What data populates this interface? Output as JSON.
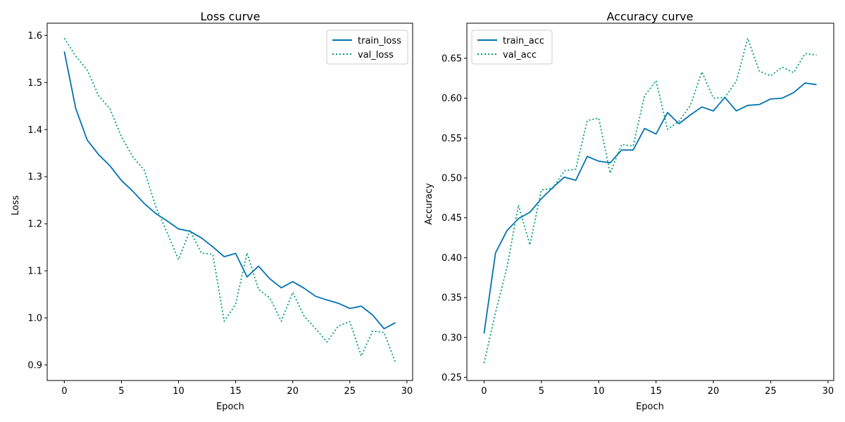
{
  "chart_data": [
    {
      "type": "line",
      "title": "Loss curve",
      "xlabel": "Epoch",
      "ylabel": "Loss",
      "xlim": [
        -1.5,
        30.5
      ],
      "ylim": [
        0.867,
        1.626
      ],
      "xticks": [
        0,
        5,
        10,
        15,
        20,
        25,
        30
      ],
      "yticks": [
        0.9,
        1.0,
        1.1,
        1.2,
        1.3,
        1.4,
        1.5,
        1.6
      ],
      "ytick_labels": [
        "0.9",
        "1.0",
        "1.1",
        "1.2",
        "1.3",
        "1.4",
        "1.5",
        "1.6"
      ],
      "grid": false,
      "legend": "top-right",
      "x": [
        0,
        1,
        2,
        3,
        4,
        5,
        6,
        7,
        8,
        9,
        10,
        11,
        12,
        13,
        14,
        15,
        16,
        17,
        18,
        19,
        20,
        21,
        22,
        23,
        24,
        25,
        26,
        27,
        28,
        29
      ],
      "series": [
        {
          "name": "train_loss",
          "color": "#0072b2",
          "style": "solid",
          "values": [
            1.566,
            1.445,
            1.378,
            1.347,
            1.323,
            1.292,
            1.269,
            1.243,
            1.222,
            1.206,
            1.189,
            1.184,
            1.17,
            1.151,
            1.13,
            1.137,
            1.087,
            1.11,
            1.083,
            1.064,
            1.077,
            1.063,
            1.046,
            1.038,
            1.031,
            1.02,
            1.025,
            1.006,
            0.977,
            0.99
          ]
        },
        {
          "name": "val_loss",
          "color": "#009e73",
          "style": "dotted",
          "values": [
            1.594,
            1.556,
            1.527,
            1.472,
            1.444,
            1.385,
            1.342,
            1.314,
            1.237,
            1.181,
            1.124,
            1.186,
            1.138,
            1.135,
            0.993,
            1.029,
            1.138,
            1.061,
            1.042,
            0.993,
            1.054,
            1.004,
            0.977,
            0.949,
            0.983,
            0.992,
            0.919,
            0.972,
            0.969,
            0.905
          ]
        }
      ]
    },
    {
      "type": "line",
      "title": "Accuracy curve",
      "xlabel": "Epoch",
      "ylabel": "Accuracy",
      "xlim": [
        -1.5,
        30.5
      ],
      "ylim": [
        0.246,
        0.694
      ],
      "xticks": [
        0,
        5,
        10,
        15,
        20,
        25,
        30
      ],
      "yticks": [
        0.25,
        0.3,
        0.35,
        0.4,
        0.45,
        0.5,
        0.55,
        0.6,
        0.65
      ],
      "ytick_labels": [
        "0.25",
        "0.30",
        "0.35",
        "0.40",
        "0.45",
        "0.50",
        "0.55",
        "0.60",
        "0.65"
      ],
      "grid": false,
      "legend": "top-left",
      "x": [
        0,
        1,
        2,
        3,
        4,
        5,
        6,
        7,
        8,
        9,
        10,
        11,
        12,
        13,
        14,
        15,
        16,
        17,
        18,
        19,
        20,
        21,
        22,
        23,
        24,
        25,
        26,
        27,
        28,
        29
      ],
      "series": [
        {
          "name": "train_acc",
          "color": "#0072b2",
          "style": "solid",
          "values": [
            0.305,
            0.406,
            0.434,
            0.449,
            0.457,
            0.474,
            0.488,
            0.501,
            0.497,
            0.527,
            0.521,
            0.519,
            0.535,
            0.535,
            0.562,
            0.555,
            0.582,
            0.568,
            0.579,
            0.589,
            0.584,
            0.601,
            0.584,
            0.591,
            0.592,
            0.599,
            0.6,
            0.607,
            0.619,
            0.617
          ]
        },
        {
          "name": "val_acc",
          "color": "#009e73",
          "style": "dotted",
          "values": [
            0.268,
            0.331,
            0.388,
            0.466,
            0.416,
            0.485,
            0.487,
            0.509,
            0.511,
            0.572,
            0.575,
            0.506,
            0.542,
            0.54,
            0.603,
            0.622,
            0.561,
            0.571,
            0.591,
            0.633,
            0.6,
            0.601,
            0.621,
            0.675,
            0.634,
            0.628,
            0.639,
            0.632,
            0.656,
            0.654
          ]
        }
      ]
    }
  ]
}
